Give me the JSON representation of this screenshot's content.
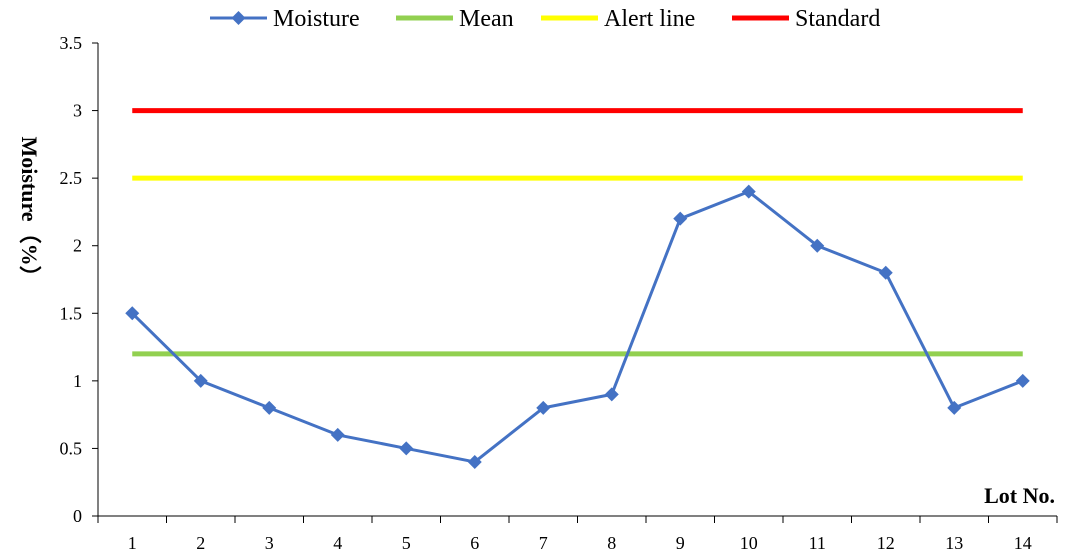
{
  "chart_data": {
    "type": "line",
    "xlabel": "Lot No.",
    "ylabel": "Moisture（%）",
    "ylim": [
      0,
      3.5
    ],
    "yticks": [
      "0",
      "0.5",
      "1",
      "1.5",
      "2",
      "2.5",
      "3",
      "3.5"
    ],
    "categories": [
      "1",
      "2",
      "3",
      "4",
      "5",
      "6",
      "7",
      "8",
      "9",
      "10",
      "11",
      "12",
      "13",
      "14"
    ],
    "grid": false,
    "legend_position": "top",
    "series": [
      {
        "name": "Moisture",
        "color": "#4472C4",
        "marker": "diamond",
        "values": [
          1.5,
          1.0,
          0.8,
          0.6,
          0.5,
          0.4,
          0.8,
          0.9,
          2.2,
          2.4,
          2.0,
          1.8,
          0.8,
          1.0
        ]
      },
      {
        "name": "Mean",
        "color": "#92D050",
        "marker": "none",
        "values": [
          1.2,
          1.2,
          1.2,
          1.2,
          1.2,
          1.2,
          1.2,
          1.2,
          1.2,
          1.2,
          1.2,
          1.2,
          1.2,
          1.2
        ]
      },
      {
        "name": "Alert line",
        "color": "#FFFF00",
        "marker": "none",
        "values": [
          2.5,
          2.5,
          2.5,
          2.5,
          2.5,
          2.5,
          2.5,
          2.5,
          2.5,
          2.5,
          2.5,
          2.5,
          2.5,
          2.5
        ]
      },
      {
        "name": "Standard",
        "color": "#FF0000",
        "marker": "none",
        "values": [
          3.0,
          3.0,
          3.0,
          3.0,
          3.0,
          3.0,
          3.0,
          3.0,
          3.0,
          3.0,
          3.0,
          3.0,
          3.0,
          3.0
        ]
      }
    ]
  }
}
